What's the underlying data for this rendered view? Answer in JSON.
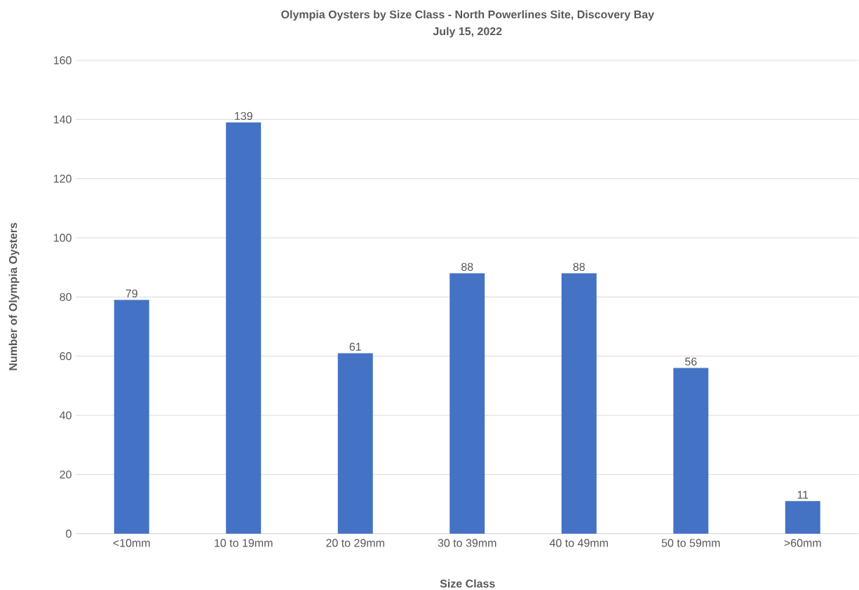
{
  "chart_data": {
    "type": "bar",
    "title": "Olympia Oysters by Size Class - North Powerlines Site, Discovery Bay",
    "subtitle": "July 15, 2022",
    "xlabel": "Size Class",
    "ylabel": "Number of Olympia Oysters",
    "categories": [
      "<10mm",
      "10 to 19mm",
      "20 to 29mm",
      "30 to 39mm",
      "40 to 49mm",
      "50 to 59mm",
      ">60mm"
    ],
    "values": [
      79,
      139,
      61,
      88,
      88,
      56,
      11
    ],
    "color": "#4472c4",
    "ylim": [
      0,
      160
    ],
    "yticks": [
      0,
      20,
      40,
      60,
      80,
      100,
      120,
      140,
      160
    ],
    "grid": "y",
    "data_labels": true
  }
}
